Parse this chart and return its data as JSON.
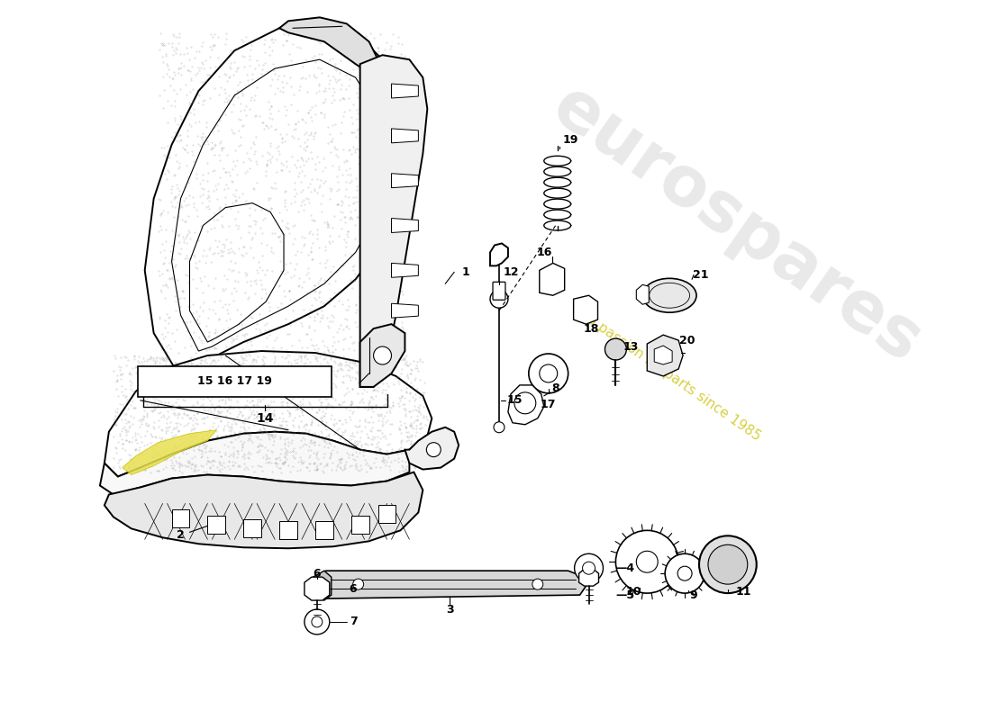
{
  "bg_color": "#ffffff",
  "watermark1": "eurospares",
  "watermark2": "a passion for parts since 1985",
  "lw_main": 1.4,
  "lw_thin": 0.8,
  "stipple_color": "#888888",
  "part_numbers": [
    "1",
    "2",
    "3",
    "4",
    "5",
    "6",
    "7",
    "8",
    "9",
    "10",
    "11",
    "12",
    "13",
    "14",
    "15",
    "16",
    "17",
    "18",
    "19",
    "20",
    "21"
  ]
}
